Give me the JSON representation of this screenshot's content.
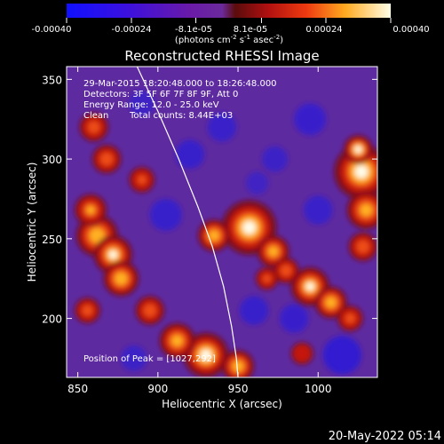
{
  "colorbar": {
    "tick_labels": [
      "-0.00040",
      "-0.00024",
      "-8.1e-05",
      "8.1e-05",
      "0.00024",
      "0.00040"
    ],
    "tick_values": [
      -0.0004,
      -0.00024,
      -8.1e-05,
      8.1e-05,
      0.00024,
      0.0004
    ],
    "unit_text": "(photons cm",
    "unit_sup1": "-2",
    "unit_mid": " s",
    "unit_sup2": "-1",
    "unit_end": " asec",
    "unit_sup3": "-2",
    "unit_close": ")"
  },
  "annotation": {
    "line1": "29-Mar-2015 18:20:48.000 to 18:26:48.000",
    "line2": "Detectors: 3F 5F 6F 7F 8F 9F, Att 0",
    "line3": "Energy Range: 12.0 - 25.0 keV",
    "line4_a": "Clean",
    "line4_b": "Total counts: 8.44E+03",
    "peak": "Position of Peak = [1027,292]"
  },
  "footer": {
    "date": "20-May-2022 05:14"
  },
  "chart_data": {
    "type": "heatmap",
    "title": "Reconstructed RHESSI Image",
    "xlabel": "Heliocentric X (arcsec)",
    "ylabel": "Heliocentric Y (arcsec)",
    "xlim": [
      843,
      1037
    ],
    "ylim": [
      163,
      358
    ],
    "x_ticks": [
      850,
      900,
      950,
      1000
    ],
    "y_ticks": [
      200,
      250,
      300,
      350
    ],
    "limb_curve": [
      [
        887,
        358
      ],
      [
        900,
        330
      ],
      [
        913,
        300
      ],
      [
        925,
        270
      ],
      [
        934,
        245
      ],
      [
        941,
        220
      ],
      [
        946,
        195
      ],
      [
        949,
        175
      ],
      [
        950,
        163
      ]
    ],
    "sources": [
      {
        "x": 1027,
        "y": 292,
        "r": 17,
        "level": 1.0
      },
      {
        "x": 1025,
        "y": 306,
        "r": 9,
        "level": 1.0
      },
      {
        "x": 1030,
        "y": 268,
        "r": 12,
        "level": 0.75
      },
      {
        "x": 1028,
        "y": 245,
        "r": 9,
        "level": 0.55
      },
      {
        "x": 957,
        "y": 257,
        "r": 17,
        "level": 1.0
      },
      {
        "x": 935,
        "y": 252,
        "r": 10,
        "level": 0.8
      },
      {
        "x": 972,
        "y": 242,
        "r": 10,
        "level": 0.75
      },
      {
        "x": 862,
        "y": 252,
        "r": 13,
        "level": 0.85
      },
      {
        "x": 872,
        "y": 240,
        "r": 12,
        "level": 0.9
      },
      {
        "x": 877,
        "y": 225,
        "r": 11,
        "level": 0.85
      },
      {
        "x": 858,
        "y": 268,
        "r": 10,
        "level": 0.6
      },
      {
        "x": 868,
        "y": 300,
        "r": 9,
        "level": 0.55
      },
      {
        "x": 860,
        "y": 320,
        "r": 9,
        "level": 0.5
      },
      {
        "x": 856,
        "y": 205,
        "r": 8,
        "level": 0.5
      },
      {
        "x": 890,
        "y": 287,
        "r": 8,
        "level": 0.4
      },
      {
        "x": 930,
        "y": 177,
        "r": 14,
        "level": 1.0
      },
      {
        "x": 912,
        "y": 186,
        "r": 11,
        "level": 0.75
      },
      {
        "x": 950,
        "y": 170,
        "r": 10,
        "level": 0.8
      },
      {
        "x": 895,
        "y": 205,
        "r": 9,
        "level": 0.55
      },
      {
        "x": 995,
        "y": 220,
        "r": 12,
        "level": 0.9
      },
      {
        "x": 1008,
        "y": 210,
        "r": 10,
        "level": 0.8
      },
      {
        "x": 980,
        "y": 230,
        "r": 8,
        "level": 0.55
      },
      {
        "x": 1020,
        "y": 200,
        "r": 8,
        "level": 0.45
      },
      {
        "x": 968,
        "y": 225,
        "r": 7,
        "level": 0.4
      },
      {
        "x": 990,
        "y": 178,
        "r": 7,
        "level": 0.25
      }
    ],
    "sinks": [
      {
        "x": 1015,
        "y": 177,
        "r": 12,
        "level": 0.75
      },
      {
        "x": 995,
        "y": 325,
        "r": 10,
        "level": 0.6
      },
      {
        "x": 985,
        "y": 200,
        "r": 9,
        "level": 0.6
      },
      {
        "x": 960,
        "y": 205,
        "r": 9,
        "level": 0.55
      },
      {
        "x": 905,
        "y": 265,
        "r": 10,
        "level": 0.55
      },
      {
        "x": 920,
        "y": 303,
        "r": 9,
        "level": 0.55
      },
      {
        "x": 1000,
        "y": 268,
        "r": 9,
        "level": 0.5
      },
      {
        "x": 973,
        "y": 300,
        "r": 8,
        "level": 0.45
      },
      {
        "x": 940,
        "y": 320,
        "r": 9,
        "level": 0.5
      },
      {
        "x": 885,
        "y": 175,
        "r": 8,
        "level": 0.45
      },
      {
        "x": 890,
        "y": 335,
        "r": 8,
        "level": 0.4
      },
      {
        "x": 962,
        "y": 285,
        "r": 7,
        "level": 0.35
      }
    ]
  }
}
